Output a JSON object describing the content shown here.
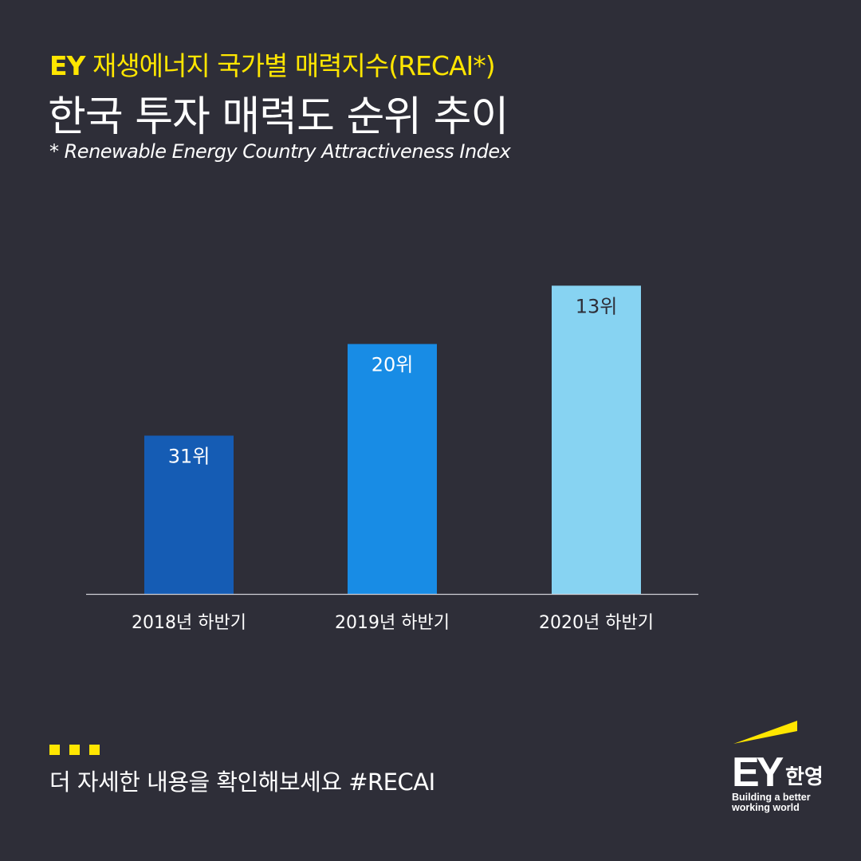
{
  "header": {
    "kicker_brand": "EY",
    "kicker": "재생에너지 국가별 매력지수(RECAI*)",
    "title": "한국 투자 매력도 순위 추이",
    "footnote": "* Renewable Energy Country Attractiveness Index"
  },
  "chart_data": {
    "type": "bar",
    "title": "한국 투자 매력도 순위 추이",
    "categories": [
      "2018년 하반기",
      "2019년 하반기",
      "2020년 하반기"
    ],
    "values": [
      31,
      20,
      13
    ],
    "data_labels": [
      "31위",
      "20위",
      "13위"
    ],
    "ylabel": "",
    "xlabel": "",
    "note": "rank; lower is better (bar height grows as rank improves)",
    "colors": [
      "#155cb4",
      "#188ce5",
      "#87d3f2"
    ],
    "label_colors": [
      "#ffffff",
      "#ffffff",
      "#2e2e38"
    ],
    "grid": false
  },
  "footer": {
    "cta": "더 자세한 내용을 확인해보세요 #RECAI"
  },
  "logo": {
    "mark": "EY",
    "korean": "한영",
    "tagline_1": "Building a better",
    "tagline_2": "working world"
  },
  "colors": {
    "background": "#2e2e38",
    "accent": "#ffe600"
  }
}
